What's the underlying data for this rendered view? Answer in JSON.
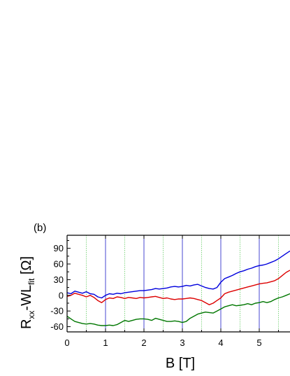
{
  "chart_data": {
    "type": "line",
    "panel_label": "(b)",
    "xlabel": "B [T]",
    "ylabel": {
      "main": "R",
      "sub1": "xx",
      "mid": "-WL",
      "sub2": "fit",
      "unit": " [Ω]"
    },
    "xlim": [
      0,
      5.8
    ],
    "ylim": [
      -70,
      115
    ],
    "x_ticks": [
      "0",
      "1",
      "2",
      "3",
      "4",
      "5"
    ],
    "x_tick_values": [
      0,
      1,
      2,
      3,
      4,
      5
    ],
    "y_ticks": [
      "90",
      "60",
      "30",
      "0",
      "-30",
      "-60"
    ],
    "y_tick_values": [
      90,
      60,
      30,
      0,
      -30,
      -60
    ],
    "vlines_solid": [
      1,
      2,
      3,
      4,
      5
    ],
    "vlines_dotted": [
      0.5,
      1.5,
      2.5,
      3.5,
      4.5,
      5.5
    ],
    "colors": {
      "solid_vline": "#3333cc",
      "dotted_vline": "#66cc66"
    },
    "series": [
      {
        "color": "#0000dd",
        "points": [
          [
            0,
            5
          ],
          [
            0.1,
            3
          ],
          [
            0.2,
            8
          ],
          [
            0.3,
            6
          ],
          [
            0.4,
            4
          ],
          [
            0.5,
            7
          ],
          [
            0.6,
            3
          ],
          [
            0.7,
            2
          ],
          [
            0.8,
            -3
          ],
          [
            0.9,
            -5
          ],
          [
            1.0,
            0
          ],
          [
            1.1,
            3
          ],
          [
            1.2,
            2
          ],
          [
            1.3,
            4
          ],
          [
            1.4,
            3
          ],
          [
            1.5,
            5
          ],
          [
            1.6,
            6
          ],
          [
            1.7,
            7
          ],
          [
            1.8,
            8
          ],
          [
            1.9,
            9
          ],
          [
            2.0,
            9
          ],
          [
            2.1,
            10
          ],
          [
            2.2,
            11
          ],
          [
            2.3,
            13
          ],
          [
            2.4,
            12
          ],
          [
            2.5,
            13
          ],
          [
            2.6,
            14
          ],
          [
            2.7,
            16
          ],
          [
            2.8,
            17
          ],
          [
            2.9,
            16
          ],
          [
            3.0,
            17
          ],
          [
            3.1,
            19
          ],
          [
            3.2,
            18
          ],
          [
            3.3,
            20
          ],
          [
            3.4,
            21
          ],
          [
            3.5,
            18
          ],
          [
            3.6,
            15
          ],
          [
            3.7,
            13
          ],
          [
            3.8,
            12
          ],
          [
            3.9,
            15
          ],
          [
            4.0,
            25
          ],
          [
            4.1,
            32
          ],
          [
            4.2,
            35
          ],
          [
            4.3,
            38
          ],
          [
            4.4,
            42
          ],
          [
            4.5,
            45
          ],
          [
            4.6,
            47
          ],
          [
            4.7,
            50
          ],
          [
            4.8,
            52
          ],
          [
            4.9,
            55
          ],
          [
            5.0,
            57
          ],
          [
            5.1,
            58
          ],
          [
            5.2,
            60
          ],
          [
            5.3,
            63
          ],
          [
            5.4,
            66
          ],
          [
            5.5,
            70
          ],
          [
            5.6,
            75
          ],
          [
            5.7,
            80
          ],
          [
            5.8,
            85
          ]
        ]
      },
      {
        "color": "#dd0000",
        "points": [
          [
            0,
            -2
          ],
          [
            0.1,
            0
          ],
          [
            0.2,
            4
          ],
          [
            0.3,
            2
          ],
          [
            0.4,
            0
          ],
          [
            0.5,
            -3
          ],
          [
            0.6,
            0
          ],
          [
            0.7,
            -4
          ],
          [
            0.8,
            -10
          ],
          [
            0.9,
            -14
          ],
          [
            1.0,
            -8
          ],
          [
            1.1,
            -5
          ],
          [
            1.2,
            -6
          ],
          [
            1.3,
            -3
          ],
          [
            1.4,
            -4
          ],
          [
            1.5,
            -6
          ],
          [
            1.6,
            -4
          ],
          [
            1.7,
            -5
          ],
          [
            1.8,
            -6
          ],
          [
            1.9,
            -4
          ],
          [
            2.0,
            -5
          ],
          [
            2.1,
            -4
          ],
          [
            2.2,
            -3
          ],
          [
            2.3,
            -2
          ],
          [
            2.4,
            -4
          ],
          [
            2.5,
            -6
          ],
          [
            2.6,
            -5
          ],
          [
            2.7,
            -7
          ],
          [
            2.8,
            -8
          ],
          [
            2.9,
            -7
          ],
          [
            3.0,
            -7
          ],
          [
            3.1,
            -6
          ],
          [
            3.2,
            -5
          ],
          [
            3.3,
            -6
          ],
          [
            3.4,
            -8
          ],
          [
            3.5,
            -10
          ],
          [
            3.6,
            -14
          ],
          [
            3.7,
            -18
          ],
          [
            3.8,
            -15
          ],
          [
            3.9,
            -10
          ],
          [
            4.0,
            -5
          ],
          [
            4.1,
            3
          ],
          [
            4.2,
            6
          ],
          [
            4.3,
            8
          ],
          [
            4.4,
            10
          ],
          [
            4.5,
            12
          ],
          [
            4.6,
            14
          ],
          [
            4.7,
            16
          ],
          [
            4.8,
            18
          ],
          [
            4.9,
            20
          ],
          [
            5.0,
            22
          ],
          [
            5.1,
            23
          ],
          [
            5.2,
            24
          ],
          [
            5.3,
            26
          ],
          [
            5.4,
            28
          ],
          [
            5.5,
            32
          ],
          [
            5.6,
            38
          ],
          [
            5.7,
            44
          ],
          [
            5.8,
            48
          ]
        ]
      },
      {
        "color": "#007700",
        "points": [
          [
            0,
            -40
          ],
          [
            0.1,
            -45
          ],
          [
            0.2,
            -50
          ],
          [
            0.3,
            -52
          ],
          [
            0.4,
            -54
          ],
          [
            0.5,
            -55
          ],
          [
            0.6,
            -54
          ],
          [
            0.7,
            -55
          ],
          [
            0.8,
            -57
          ],
          [
            0.9,
            -58
          ],
          [
            1.0,
            -58
          ],
          [
            1.1,
            -57
          ],
          [
            1.2,
            -58
          ],
          [
            1.3,
            -56
          ],
          [
            1.4,
            -52
          ],
          [
            1.5,
            -48
          ],
          [
            1.6,
            -50
          ],
          [
            1.7,
            -48
          ],
          [
            1.8,
            -46
          ],
          [
            1.9,
            -45
          ],
          [
            2.0,
            -45
          ],
          [
            2.1,
            -46
          ],
          [
            2.2,
            -48
          ],
          [
            2.3,
            -44
          ],
          [
            2.4,
            -46
          ],
          [
            2.5,
            -48
          ],
          [
            2.6,
            -50
          ],
          [
            2.7,
            -50
          ],
          [
            2.8,
            -49
          ],
          [
            2.9,
            -50
          ],
          [
            3.0,
            -52
          ],
          [
            3.1,
            -50
          ],
          [
            3.2,
            -44
          ],
          [
            3.3,
            -40
          ],
          [
            3.4,
            -36
          ],
          [
            3.5,
            -34
          ],
          [
            3.6,
            -32
          ],
          [
            3.7,
            -33
          ],
          [
            3.8,
            -34
          ],
          [
            3.9,
            -30
          ],
          [
            4.0,
            -26
          ],
          [
            4.1,
            -22
          ],
          [
            4.2,
            -20
          ],
          [
            4.3,
            -18
          ],
          [
            4.4,
            -20
          ],
          [
            4.5,
            -19
          ],
          [
            4.6,
            -18
          ],
          [
            4.7,
            -16
          ],
          [
            4.8,
            -18
          ],
          [
            4.9,
            -15
          ],
          [
            5.0,
            -14
          ],
          [
            5.1,
            -12
          ],
          [
            5.2,
            -14
          ],
          [
            5.3,
            -12
          ],
          [
            5.4,
            -8
          ],
          [
            5.5,
            -5
          ],
          [
            5.6,
            -3
          ],
          [
            5.7,
            0
          ],
          [
            5.8,
            3
          ]
        ]
      }
    ]
  }
}
